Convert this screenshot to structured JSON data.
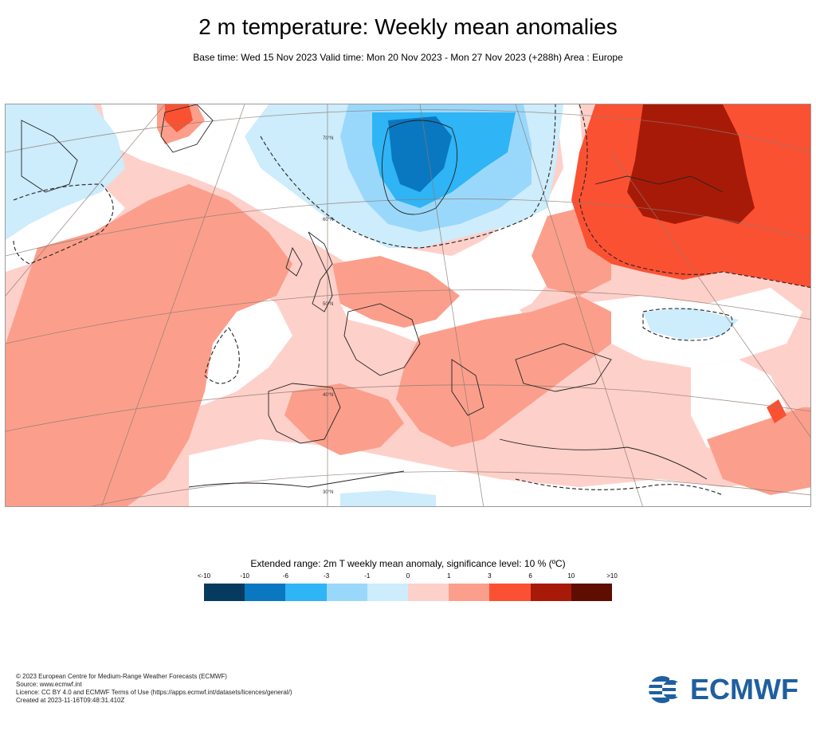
{
  "header": {
    "title": "2 m temperature: Weekly mean anomalies",
    "subtitle": "Base time: Wed 15 Nov 2023 Valid time: Mon 20 Nov 2023 - Mon 27 Nov 2023 (+288h) Area : Europe"
  },
  "map": {
    "latitude_labels": [
      "70°N",
      "60°N",
      "50°N",
      "40°N",
      "30°N"
    ],
    "regions": {
      "scandinavia": "negative anomaly",
      "western_russia": "strong positive anomaly",
      "atlantic": "positive anomaly"
    }
  },
  "legend": {
    "title": "Extended range: 2m T weekly mean anomaly, significance level: 10 % (ºC)",
    "tick_labels": [
      "<-10",
      "-10",
      "-6",
      "-3",
      "-1",
      "0",
      "1",
      "3",
      "6",
      "10",
      ">10"
    ],
    "colors": [
      "#063a5e",
      "#0a78c0",
      "#2fb4f5",
      "#9ad8fb",
      "#cdecfc",
      "#ffffff",
      "#fed0ca",
      "#fb9f8c",
      "#fb5133",
      "#a81a08",
      "#5e0d00"
    ]
  },
  "footer": {
    "copyright": "© 2023 European Centre for Medium-Range Weather Forecasts (ECMWF)",
    "source": "Source: www.ecmwf.int",
    "licence": "Licence: CC BY 4.0 and ECMWF Terms of Use (https://apps.ecmwf.int/datasets/licences/general/)",
    "created": "Created at 2023-11-16T09:48:31.410Z"
  },
  "logo": {
    "text": "ECMWF",
    "color": "#1f5fa0"
  }
}
